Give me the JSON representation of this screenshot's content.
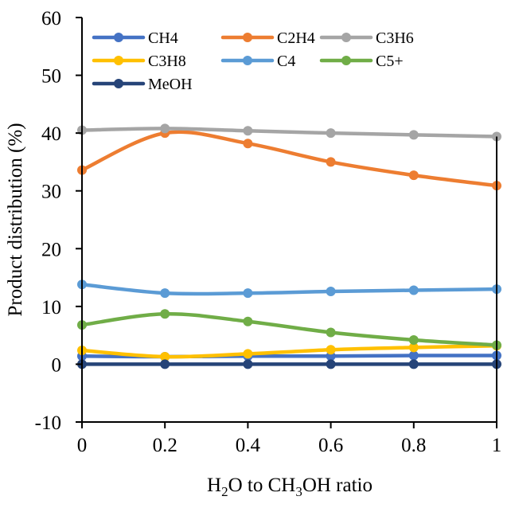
{
  "chart_data": {
    "type": "line",
    "title": "",
    "xlabel": "H2O to CH3OH ratio",
    "xlabel_parts": [
      {
        "text": "H",
        "sub": false
      },
      {
        "text": "2",
        "sub": true
      },
      {
        "text": "O to CH",
        "sub": false
      },
      {
        "text": "3",
        "sub": true
      },
      {
        "text": "OH ratio",
        "sub": false
      }
    ],
    "ylabel": "Product distribution (%)",
    "xlim": [
      0,
      1
    ],
    "ylim": [
      -10,
      60
    ],
    "xticks": [
      0,
      0.2,
      0.4,
      0.6,
      0.8,
      1
    ],
    "xtick_labels": [
      "0",
      "0.2",
      "0.4",
      "0.6",
      "0.8",
      "1"
    ],
    "yticks": [
      -10,
      0,
      10,
      20,
      30,
      40,
      50,
      60
    ],
    "ytick_labels": [
      "-10",
      "0",
      "10",
      "20",
      "30",
      "40",
      "50",
      "60"
    ],
    "grid": false,
    "smoothed": true,
    "legend_position": "top",
    "x": [
      0,
      0.2,
      0.4,
      0.6,
      0.8,
      1
    ],
    "series": [
      {
        "name": "CH4",
        "color": "#4472C4",
        "values": [
          1.4,
          1.3,
          1.4,
          1.4,
          1.5,
          1.5
        ]
      },
      {
        "name": "C2H4",
        "color": "#ED7D31",
        "values": [
          33.6,
          40.0,
          38.2,
          35.0,
          32.7,
          30.9
        ]
      },
      {
        "name": "C3H6",
        "color": "#A5A5A5",
        "values": [
          40.5,
          40.8,
          40.4,
          40.0,
          39.7,
          39.4
        ]
      },
      {
        "name": "C3H8",
        "color": "#FFC000",
        "values": [
          2.4,
          1.3,
          1.8,
          2.5,
          2.9,
          3.2
        ]
      },
      {
        "name": "C4",
        "color": "#5B9BD5",
        "values": [
          13.8,
          12.3,
          12.3,
          12.6,
          12.8,
          13.0
        ]
      },
      {
        "name": "C5+",
        "color": "#70AD47",
        "values": [
          6.8,
          8.7,
          7.4,
          5.5,
          4.2,
          3.3
        ]
      },
      {
        "name": "MeOH",
        "color": "#264478",
        "values": [
          0,
          0,
          0,
          0,
          0,
          0
        ]
      }
    ]
  }
}
